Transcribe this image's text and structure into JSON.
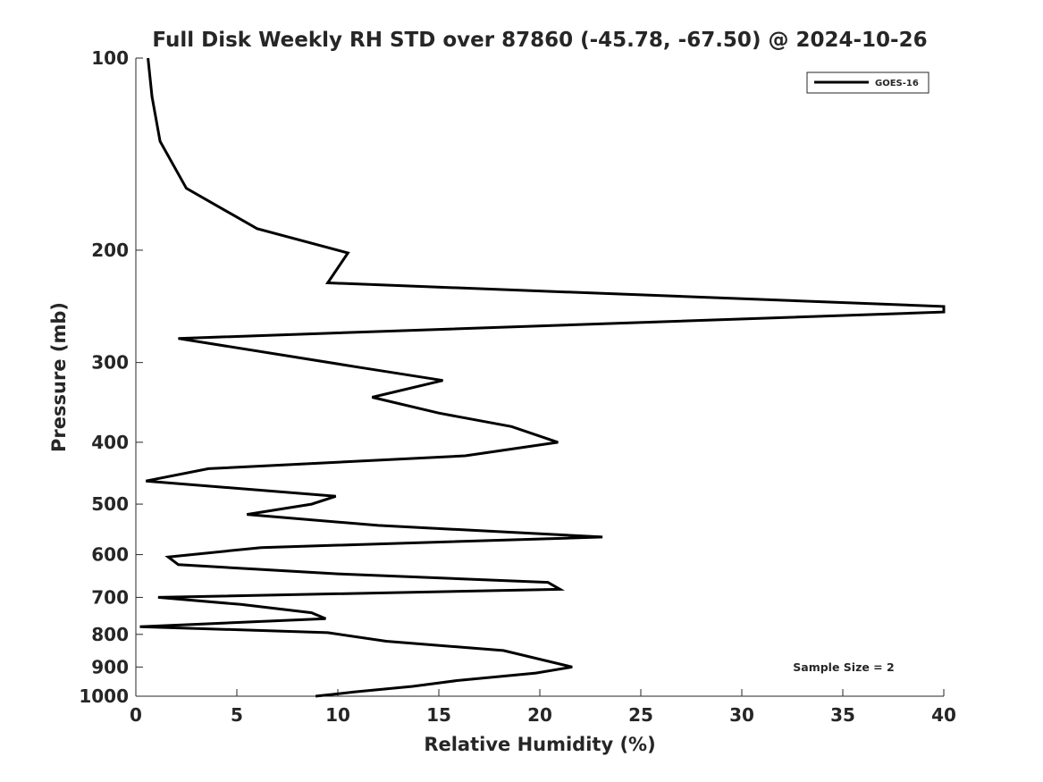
{
  "chart_data": {
    "type": "line",
    "title": "Full Disk Weekly RH STD over 87860 (-45.78, -67.50) @ 2024-10-26",
    "xlabel": "Relative Humidity (%)",
    "ylabel": "Pressure (mb)",
    "xlim": [
      0,
      40
    ],
    "ylim": [
      100,
      1000
    ],
    "yscale": "log",
    "y_reversed": true,
    "x_ticks": [
      0,
      5,
      10,
      15,
      20,
      25,
      30,
      35,
      40
    ],
    "x_tick_labels": [
      "0",
      "5",
      "10",
      "15",
      "20",
      "25",
      "30",
      "35",
      "40"
    ],
    "y_ticks": [
      100,
      200,
      300,
      400,
      500,
      600,
      700,
      800,
      900,
      1000
    ],
    "y_tick_labels": [
      "100",
      "200",
      "300",
      "400",
      "500",
      "600",
      "700",
      "800",
      "900",
      "1000"
    ],
    "grid": false,
    "legend_position": "top-right",
    "series": [
      {
        "name": "GOES-16",
        "color": "#000000",
        "points": [
          [
            0.6,
            100
          ],
          [
            0.8,
            115
          ],
          [
            1.2,
            135
          ],
          [
            2.5,
            160
          ],
          [
            6.0,
            185
          ],
          [
            10.5,
            202
          ],
          [
            9.5,
            225
          ],
          [
            40.0,
            245
          ],
          [
            40.0,
            250
          ],
          [
            2.1,
            275
          ],
          [
            11.0,
            305
          ],
          [
            15.2,
            320
          ],
          [
            11.7,
            340
          ],
          [
            15.0,
            360
          ],
          [
            18.6,
            378
          ],
          [
            20.9,
            400
          ],
          [
            16.3,
            420
          ],
          [
            3.6,
            440
          ],
          [
            0.5,
            460
          ],
          [
            9.9,
            486
          ],
          [
            8.7,
            500
          ],
          [
            5.5,
            519
          ],
          [
            12.0,
            540
          ],
          [
            23.1,
            563
          ],
          [
            6.2,
            585
          ],
          [
            1.6,
            605
          ],
          [
            2.1,
            622
          ],
          [
            10.0,
            643
          ],
          [
            20.4,
            663
          ],
          [
            21.0,
            680
          ],
          [
            1.1,
            700
          ],
          [
            5.2,
            718
          ],
          [
            8.7,
            740
          ],
          [
            9.4,
            756
          ],
          [
            0.2,
            778
          ],
          [
            9.5,
            795
          ],
          [
            12.4,
            820
          ],
          [
            18.2,
            848
          ],
          [
            21.6,
            900
          ],
          [
            19.8,
            920
          ],
          [
            15.9,
            945
          ],
          [
            13.7,
            965
          ],
          [
            10.8,
            985
          ],
          [
            8.9,
            1000
          ]
        ]
      }
    ],
    "annotations": [
      {
        "text": "Sample Size = 2",
        "position": "bottom-right"
      }
    ]
  }
}
